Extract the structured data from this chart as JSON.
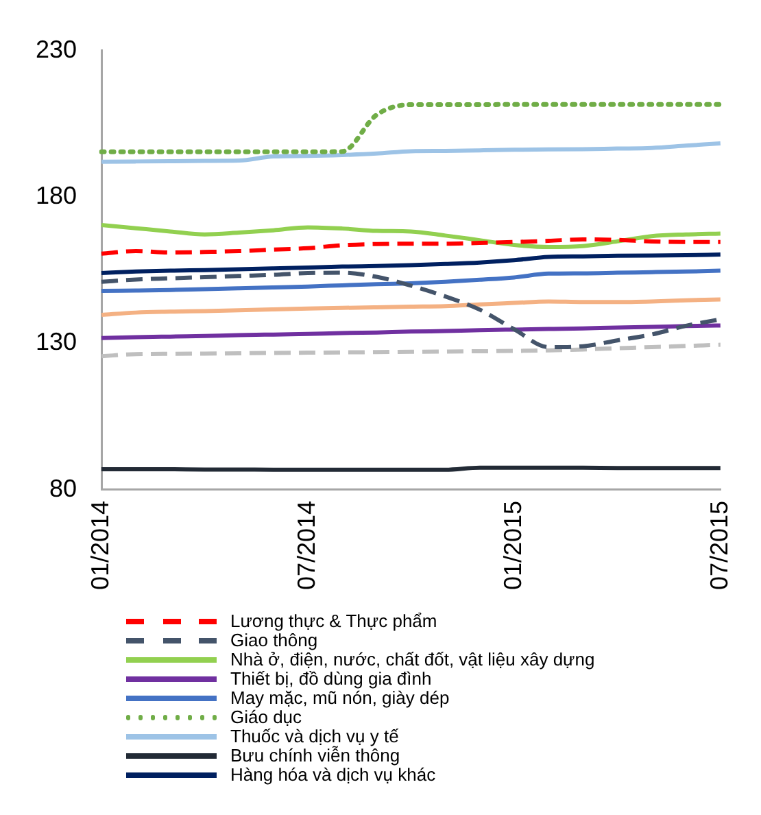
{
  "chart_data": {
    "type": "line",
    "categories": [
      "01/2014",
      null,
      null,
      null,
      null,
      null,
      "07/2014",
      null,
      null,
      null,
      null,
      null,
      "01/2015",
      null,
      null,
      null,
      null,
      null,
      "07/2015"
    ],
    "ylim": [
      80,
      230
    ],
    "yticks": [
      80,
      130,
      180,
      230
    ],
    "grid": false,
    "legend": "bottom",
    "marker": "none",
    "series": [
      {
        "name": "Lương thực & Thực phẩm",
        "color": "#ff0000",
        "line_style": "dashed",
        "values": [
          160.6,
          161.5,
          161,
          161.2,
          161.5,
          162,
          162.5,
          163.5,
          163.9,
          164,
          164,
          164.3,
          164.6,
          165,
          165.5,
          165.3,
          164.8,
          164.6,
          164.6
        ]
      },
      {
        "name": "Giao thông",
        "color": "#44546a",
        "line_style": "dashed",
        "values": [
          151,
          151.8,
          152.2,
          152.6,
          153,
          153.4,
          154,
          154.1,
          152.7,
          149.7,
          146,
          141.5,
          134.8,
          128.7,
          129,
          131,
          133,
          136,
          138.2
        ]
      },
      {
        "name": "Nhà ở, điện, nước, chất đốt, vật liệu xây dựng",
        "color": "#92d050",
        "line_style": "solid",
        "values": [
          170.4,
          169.3,
          168.2,
          167.2,
          167.8,
          168.6,
          169.6,
          169.2,
          168.4,
          168.2,
          166.8,
          165.2,
          163.6,
          162.9,
          163.2,
          164.8,
          166.6,
          167.2,
          167.5
        ]
      },
      {
        "name": "Thiết bị, đồ dùng gia đình",
        "color": "#7030a0",
        "line_style": "solid",
        "values": [
          131.8,
          132.1,
          132.3,
          132.5,
          132.8,
          133,
          133.2,
          133.5,
          133.7,
          134,
          134.2,
          134.5,
          134.7,
          134.9,
          135.1,
          135.4,
          135.6,
          135.9,
          136.1
        ]
      },
      {
        "name": "May mặc, mũ nón, giày dép",
        "color": "#4472c4",
        "line_style": "solid",
        "values": [
          147.9,
          148,
          148.2,
          148.5,
          148.8,
          149.1,
          149.4,
          149.8,
          150.2,
          150.5,
          151,
          151.7,
          152.5,
          153.8,
          153.9,
          154.1,
          154.3,
          154.5,
          154.8
        ]
      },
      {
        "name": "Giáo dục",
        "color": "#70ad47",
        "line_style": "dotted",
        "values": [
          195.4,
          195.4,
          195.4,
          195.4,
          195.4,
          195.4,
          195.4,
          195.5,
          208,
          211.5,
          211.5,
          211.5,
          211.6,
          211.6,
          211.6,
          211.6,
          211.6,
          211.6,
          211.6
        ]
      },
      {
        "name": "Thuốc và dịch vụ y tế",
        "color": "#9dc3e6",
        "line_style": "solid",
        "values": [
          192,
          192.1,
          192.2,
          192.3,
          192.4,
          193.8,
          194,
          194.3,
          194.8,
          195.6,
          195.7,
          195.9,
          196.1,
          196.2,
          196.3,
          196.5,
          196.7,
          197.5,
          198.3
        ]
      },
      {
        "name": "Bưu chính viễn thông",
        "color": "#222a35",
        "line_style": "solid",
        "values": [
          87,
          87,
          87,
          86.9,
          86.9,
          86.8,
          86.8,
          86.8,
          86.8,
          86.8,
          86.8,
          87.5,
          87.5,
          87.5,
          87.5,
          87.4,
          87.4,
          87.4,
          87.4
        ]
      },
      {
        "name": "Hàng hóa và dịch vụ khác",
        "color": "#002060",
        "line_style": "solid",
        "values": [
          154,
          154.5,
          154.8,
          155,
          155.3,
          155.6,
          155.9,
          156.2,
          156.4,
          156.7,
          157.1,
          157.6,
          158.4,
          159.5,
          159.7,
          159.9,
          160,
          160.1,
          160.3
        ]
      },
      {
        "color": "#f4b183",
        "line_style": "solid",
        "values": [
          139.7,
          140.5,
          140.8,
          141,
          141.3,
          141.6,
          141.9,
          142.1,
          142.3,
          142.5,
          142.7,
          143.3,
          143.8,
          144.3,
          144.1,
          144.1,
          144.3,
          144.7,
          145
        ]
      },
      {
        "color": "#bfbfbf",
        "line_style": "dashed",
        "values": [
          125.6,
          126.3,
          126.4,
          126.5,
          126.6,
          126.7,
          126.8,
          126.9,
          127,
          127.1,
          127.2,
          127.3,
          127.4,
          127.6,
          127.9,
          128.3,
          128.7,
          129.1,
          129.5
        ]
      }
    ]
  }
}
